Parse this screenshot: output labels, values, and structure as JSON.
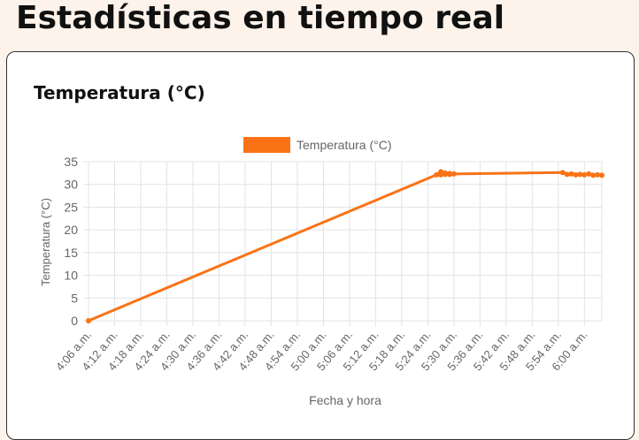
{
  "page": {
    "title": "Estadísticas en tiempo real"
  },
  "card": {
    "title": "Temperatura (°C)"
  },
  "colors": {
    "line": "#f97316",
    "grid": "#e3e3e3",
    "text": "#666666",
    "background": "#fdf3ea"
  },
  "chart_data": {
    "type": "line",
    "title": "",
    "xlabel": "Fecha y hora",
    "ylabel": "Temperatura (°C)",
    "legend": "top",
    "grid": true,
    "ylim": [
      0,
      35
    ],
    "yticks": [
      0,
      5,
      10,
      15,
      20,
      25,
      30,
      35
    ],
    "xlim": [
      "4:06",
      "6:04"
    ],
    "x_tick_labels": [
      "4:06 a.m.",
      "4:12 a.m.",
      "4:18 a.m.",
      "4:24 a.m.",
      "4:30 a.m.",
      "4:36 a.m.",
      "4:42 a.m.",
      "4:48 a.m.",
      "4:54 a.m.",
      "5:00 a.m.",
      "5:06 a.m.",
      "5:12 a.m.",
      "5:18 a.m.",
      "5:24 a.m.",
      "5:30 a.m.",
      "5:36 a.m.",
      "5:42 a.m.",
      "5:48 a.m.",
      "5:54 a.m.",
      "6:00 a.m."
    ],
    "series": [
      {
        "name": "Temperatura (°C)",
        "x": [
          "4:06",
          "5:26",
          "5:27",
          "5:27",
          "5:28",
          "5:28",
          "5:29",
          "5:29",
          "5:30",
          "5:55",
          "5:56",
          "5:57",
          "5:58",
          "5:59",
          "6:00",
          "6:01",
          "6:02",
          "6:03",
          "6:04"
        ],
        "values": [
          0,
          32.1,
          32.8,
          32.1,
          32.5,
          32.2,
          32.4,
          32.2,
          32.3,
          32.6,
          32.2,
          32.3,
          32.1,
          32.2,
          32.1,
          32.3,
          32.0,
          32.1,
          32.0
        ]
      }
    ]
  }
}
